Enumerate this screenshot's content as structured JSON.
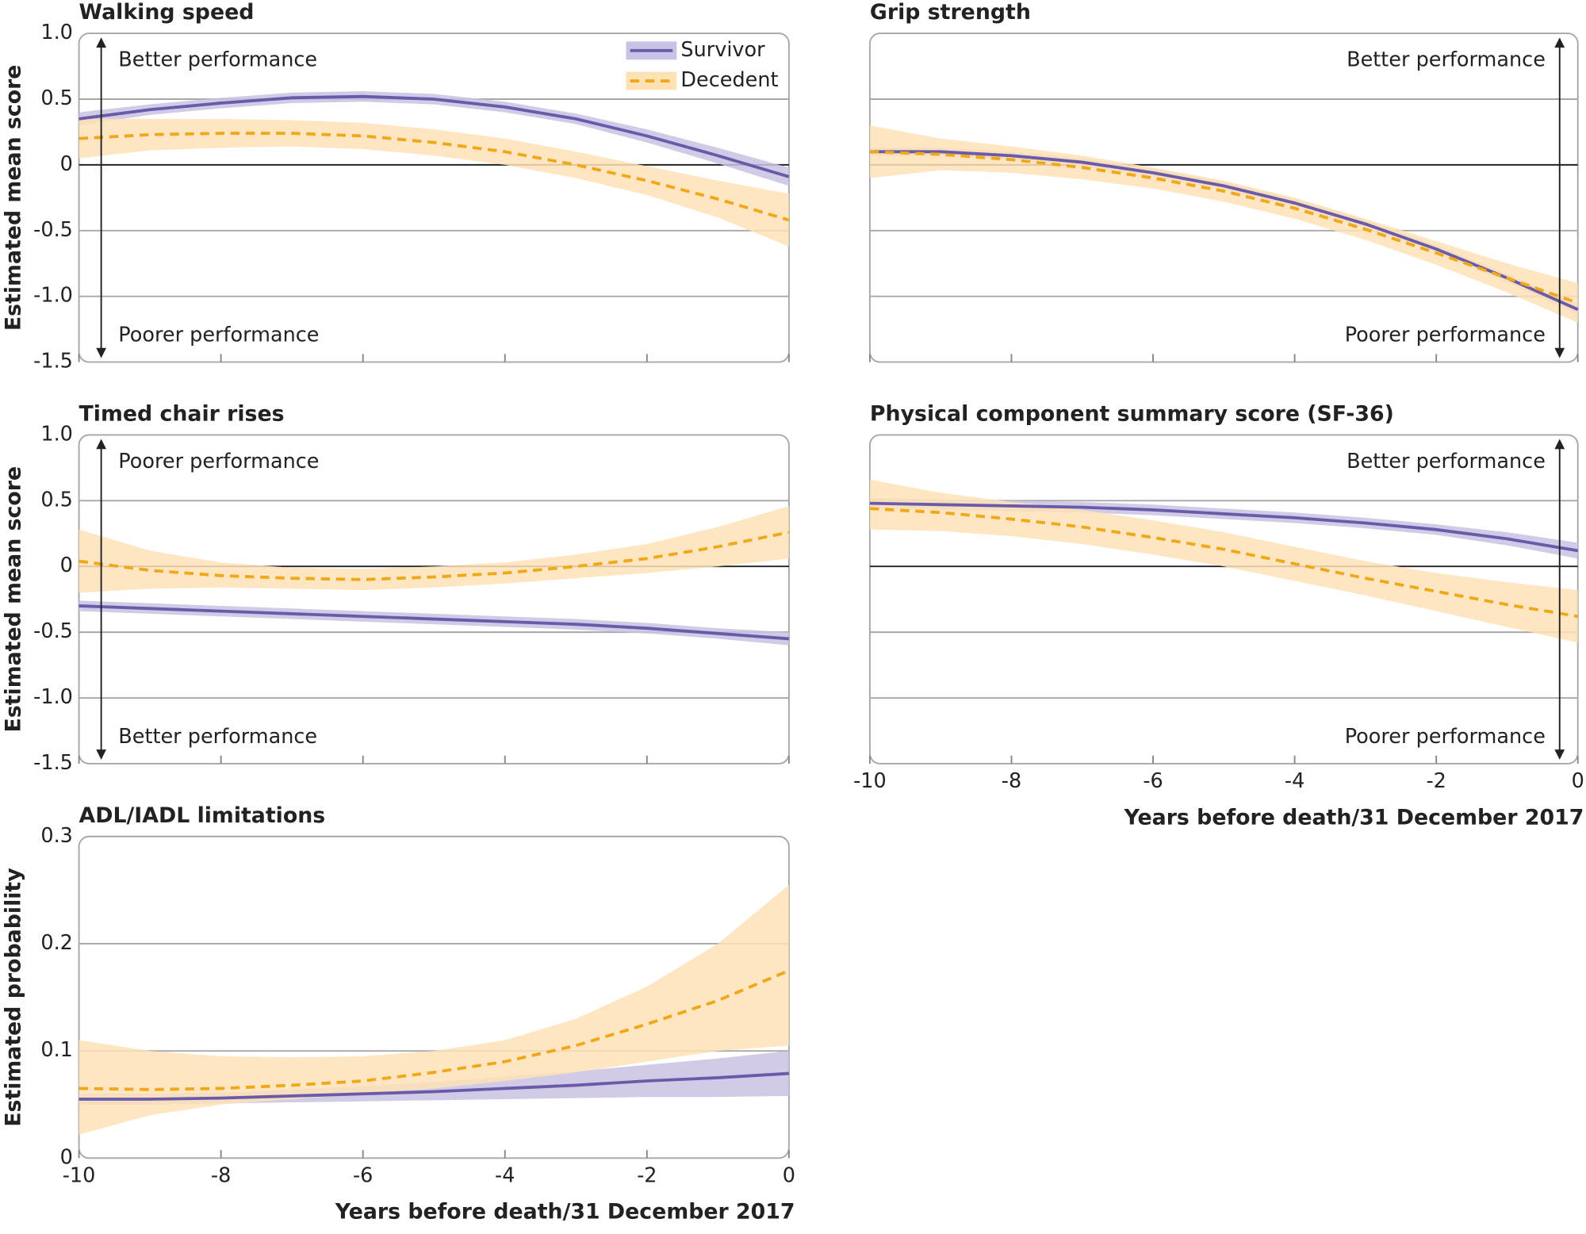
{
  "chart_data": [
    {
      "type": "line",
      "title": "Walking speed",
      "ylabel": "Estimated mean score",
      "x": [
        -10,
        -9,
        -8,
        -7,
        -6,
        -5,
        -4,
        -3,
        -2,
        -1,
        0
      ],
      "xlim": [
        -10,
        0
      ],
      "xticks": [
        -10,
        -8,
        -6,
        -4,
        -2,
        0
      ],
      "xtick_labels": false,
      "ylim": [
        -1.5,
        1
      ],
      "yticks": [
        {
          "value": 1,
          "label": "1.0"
        },
        0.5,
        0,
        -0.5,
        {
          "value": -1,
          "label": "-1.0"
        },
        -1.5
      ],
      "ytick_labels": true,
      "grid": true,
      "zero_line": true,
      "legend": "upper right",
      "annotations": [
        "Better performance",
        "Poorer performance"
      ],
      "series": [
        {
          "name": "Survivor",
          "color": "#6a5aa8",
          "band_color": "#c9c2e4",
          "values": [
            0.35,
            0.42,
            0.47,
            0.51,
            0.52,
            0.5,
            0.44,
            0.35,
            0.22,
            0.07,
            -0.09
          ],
          "lower": [
            0.3,
            0.38,
            0.43,
            0.47,
            0.48,
            0.46,
            0.4,
            0.31,
            0.17,
            0.01,
            -0.16
          ],
          "upper": [
            0.4,
            0.46,
            0.51,
            0.55,
            0.56,
            0.54,
            0.48,
            0.39,
            0.27,
            0.13,
            -0.02
          ]
        },
        {
          "name": "Decedent",
          "color": "#f0a818",
          "band_color": "#fde2b6",
          "values": [
            0.2,
            0.23,
            0.24,
            0.24,
            0.22,
            0.17,
            0.1,
            0.0,
            -0.12,
            -0.26,
            -0.42
          ],
          "lower": [
            0.05,
            0.11,
            0.13,
            0.14,
            0.12,
            0.07,
            0.0,
            -0.1,
            -0.23,
            -0.4,
            -0.62
          ],
          "upper": [
            0.35,
            0.35,
            0.35,
            0.34,
            0.32,
            0.27,
            0.2,
            0.1,
            -0.01,
            -0.12,
            -0.22
          ]
        }
      ]
    },
    {
      "type": "line",
      "title": "Grip strength",
      "x": [
        -10,
        -9,
        -8,
        -7,
        -6,
        -5,
        -4,
        -3,
        -2,
        -1,
        0
      ],
      "xlim": [
        -10,
        0
      ],
      "xticks": [
        -10,
        -8,
        -6,
        -4,
        -2,
        0
      ],
      "xtick_labels": false,
      "ylim": [
        -1.5,
        1
      ],
      "yticks": [
        {
          "value": 1,
          "label": "1.0"
        },
        0.5,
        0,
        -0.5,
        {
          "value": -1,
          "label": "-1.0"
        },
        -1.5
      ],
      "ytick_labels": false,
      "grid": true,
      "zero_line": true,
      "annotations": [
        "Better performance",
        "Poorer performance"
      ],
      "series": [
        {
          "name": "Survivor",
          "color": "#6a5aa8",
          "band_color": "#c9c2e4",
          "values": [
            0.1,
            0.1,
            0.07,
            0.02,
            -0.06,
            -0.16,
            -0.29,
            -0.45,
            -0.64,
            -0.86,
            -1.1
          ],
          "lower": [
            0.07,
            0.07,
            0.04,
            -0.01,
            -0.09,
            -0.19,
            -0.32,
            -0.48,
            -0.67,
            -0.89,
            -1.14
          ],
          "upper": [
            0.13,
            0.13,
            0.1,
            0.05,
            -0.03,
            -0.13,
            -0.26,
            -0.42,
            -0.61,
            -0.83,
            -1.06
          ]
        },
        {
          "name": "Decedent",
          "color": "#f0a818",
          "band_color": "#fde2b6",
          "values": [
            0.1,
            0.08,
            0.04,
            -0.02,
            -0.1,
            -0.2,
            -0.33,
            -0.49,
            -0.67,
            -0.86,
            -1.05
          ],
          "lower": [
            -0.1,
            -0.04,
            -0.06,
            -0.11,
            -0.18,
            -0.28,
            -0.41,
            -0.57,
            -0.76,
            -0.97,
            -1.2
          ],
          "upper": [
            0.3,
            0.2,
            0.14,
            0.07,
            -0.02,
            -0.12,
            -0.25,
            -0.41,
            -0.58,
            -0.75,
            -0.9
          ]
        }
      ]
    },
    {
      "type": "line",
      "title": "Timed chair rises",
      "ylabel": "Estimated mean score",
      "x": [
        -10,
        -9,
        -8,
        -7,
        -6,
        -5,
        -4,
        -3,
        -2,
        -1,
        0
      ],
      "xlim": [
        -10,
        0
      ],
      "xticks": [
        -10,
        -8,
        -6,
        -4,
        -2,
        0
      ],
      "xtick_labels": false,
      "ylim": [
        -1.5,
        1
      ],
      "yticks": [
        {
          "value": 1,
          "label": "1.0"
        },
        0.5,
        0,
        -0.5,
        {
          "value": -1,
          "label": "-1.0"
        },
        -1.5
      ],
      "ytick_labels": true,
      "grid": true,
      "zero_line": true,
      "annotations": [
        "Poorer performance",
        "Better performance"
      ],
      "series": [
        {
          "name": "Survivor",
          "color": "#6a5aa8",
          "band_color": "#c9c2e4",
          "values": [
            -0.3,
            -0.32,
            -0.34,
            -0.36,
            -0.38,
            -0.4,
            -0.42,
            -0.44,
            -0.47,
            -0.51,
            -0.55
          ],
          "lower": [
            -0.34,
            -0.36,
            -0.38,
            -0.4,
            -0.42,
            -0.44,
            -0.46,
            -0.48,
            -0.51,
            -0.55,
            -0.6
          ],
          "upper": [
            -0.26,
            -0.28,
            -0.3,
            -0.32,
            -0.34,
            -0.36,
            -0.38,
            -0.4,
            -0.43,
            -0.47,
            -0.5
          ]
        },
        {
          "name": "Decedent",
          "color": "#f0a818",
          "band_color": "#fde2b6",
          "values": [
            0.04,
            -0.03,
            -0.07,
            -0.09,
            -0.1,
            -0.08,
            -0.05,
            0.0,
            0.06,
            0.15,
            0.26
          ],
          "lower": [
            -0.2,
            -0.17,
            -0.16,
            -0.17,
            -0.18,
            -0.16,
            -0.13,
            -0.09,
            -0.05,
            0.0,
            0.06
          ],
          "upper": [
            0.28,
            0.12,
            0.03,
            -0.01,
            -0.02,
            0.0,
            0.03,
            0.09,
            0.17,
            0.3,
            0.46
          ]
        }
      ]
    },
    {
      "type": "line",
      "title": "Physical component summary score (SF-36)",
      "xlabel": "Years before death/31 December 2017",
      "x": [
        -10,
        -9,
        -8,
        -7,
        -6,
        -5,
        -4,
        -3,
        -2,
        -1,
        0
      ],
      "xlim": [
        -10,
        0
      ],
      "xticks": [
        -10,
        -8,
        -6,
        -4,
        -2,
        0
      ],
      "xtick_labels": true,
      "ylim": [
        -1.5,
        1
      ],
      "yticks": [
        {
          "value": 1,
          "label": "1.0"
        },
        0.5,
        0,
        -0.5,
        {
          "value": -1,
          "label": "-1.0"
        },
        -1.5
      ],
      "ytick_labels": false,
      "grid": true,
      "zero_line": true,
      "annotations": [
        "Better performance",
        "Poorer performance"
      ],
      "series": [
        {
          "name": "Survivor",
          "color": "#6a5aa8",
          "band_color": "#c9c2e4",
          "values": [
            0.48,
            0.47,
            0.46,
            0.45,
            0.43,
            0.4,
            0.37,
            0.33,
            0.28,
            0.21,
            0.12
          ],
          "lower": [
            0.44,
            0.43,
            0.42,
            0.41,
            0.39,
            0.36,
            0.33,
            0.29,
            0.24,
            0.16,
            0.06
          ],
          "upper": [
            0.52,
            0.51,
            0.5,
            0.49,
            0.47,
            0.44,
            0.41,
            0.37,
            0.32,
            0.26,
            0.18
          ]
        },
        {
          "name": "Decedent",
          "color": "#f0a818",
          "band_color": "#fde2b6",
          "values": [
            0.44,
            0.41,
            0.36,
            0.3,
            0.22,
            0.13,
            0.02,
            -0.09,
            -0.19,
            -0.29,
            -0.38
          ],
          "lower": [
            0.28,
            0.27,
            0.23,
            0.17,
            0.09,
            0.0,
            -0.11,
            -0.22,
            -0.34,
            -0.46,
            -0.58
          ],
          "upper": [
            0.66,
            0.56,
            0.49,
            0.43,
            0.35,
            0.26,
            0.15,
            0.04,
            -0.05,
            -0.12,
            -0.18
          ]
        }
      ]
    },
    {
      "type": "line",
      "title": "ADL/IADL limitations",
      "ylabel": "Estimated probability",
      "xlabel": "Years before death/31 December 2017",
      "x": [
        -10,
        -9,
        -8,
        -7,
        -6,
        -5,
        -4,
        -3,
        -2,
        -1,
        0
      ],
      "xlim": [
        -10,
        0
      ],
      "xticks": [
        -10,
        -8,
        -6,
        -4,
        -2,
        0
      ],
      "xtick_labels": true,
      "ylim": [
        0,
        0.3
      ],
      "yticks": [
        0.3,
        0.2,
        0.1,
        0
      ],
      "ytick_labels": true,
      "grid": true,
      "zero_line": false,
      "series": [
        {
          "name": "Survivor",
          "color": "#6a5aa8",
          "band_color": "#c9c2e4",
          "values": [
            0.055,
            0.055,
            0.056,
            0.058,
            0.06,
            0.062,
            0.065,
            0.068,
            0.072,
            0.075,
            0.079
          ],
          "lower": [
            0.05,
            0.05,
            0.051,
            0.052,
            0.053,
            0.054,
            0.055,
            0.056,
            0.057,
            0.057,
            0.058
          ],
          "upper": [
            0.06,
            0.06,
            0.061,
            0.064,
            0.067,
            0.071,
            0.076,
            0.081,
            0.087,
            0.093,
            0.1
          ]
        },
        {
          "name": "Decedent",
          "color": "#f0a818",
          "band_color": "#fde2b6",
          "values": [
            0.065,
            0.064,
            0.065,
            0.068,
            0.072,
            0.08,
            0.09,
            0.105,
            0.125,
            0.147,
            0.175
          ],
          "lower": [
            0.022,
            0.04,
            0.05,
            0.055,
            0.06,
            0.065,
            0.072,
            0.08,
            0.09,
            0.1,
            0.105
          ],
          "upper": [
            0.11,
            0.1,
            0.095,
            0.094,
            0.095,
            0.1,
            0.11,
            0.13,
            0.16,
            0.2,
            0.255
          ]
        }
      ]
    }
  ]
}
